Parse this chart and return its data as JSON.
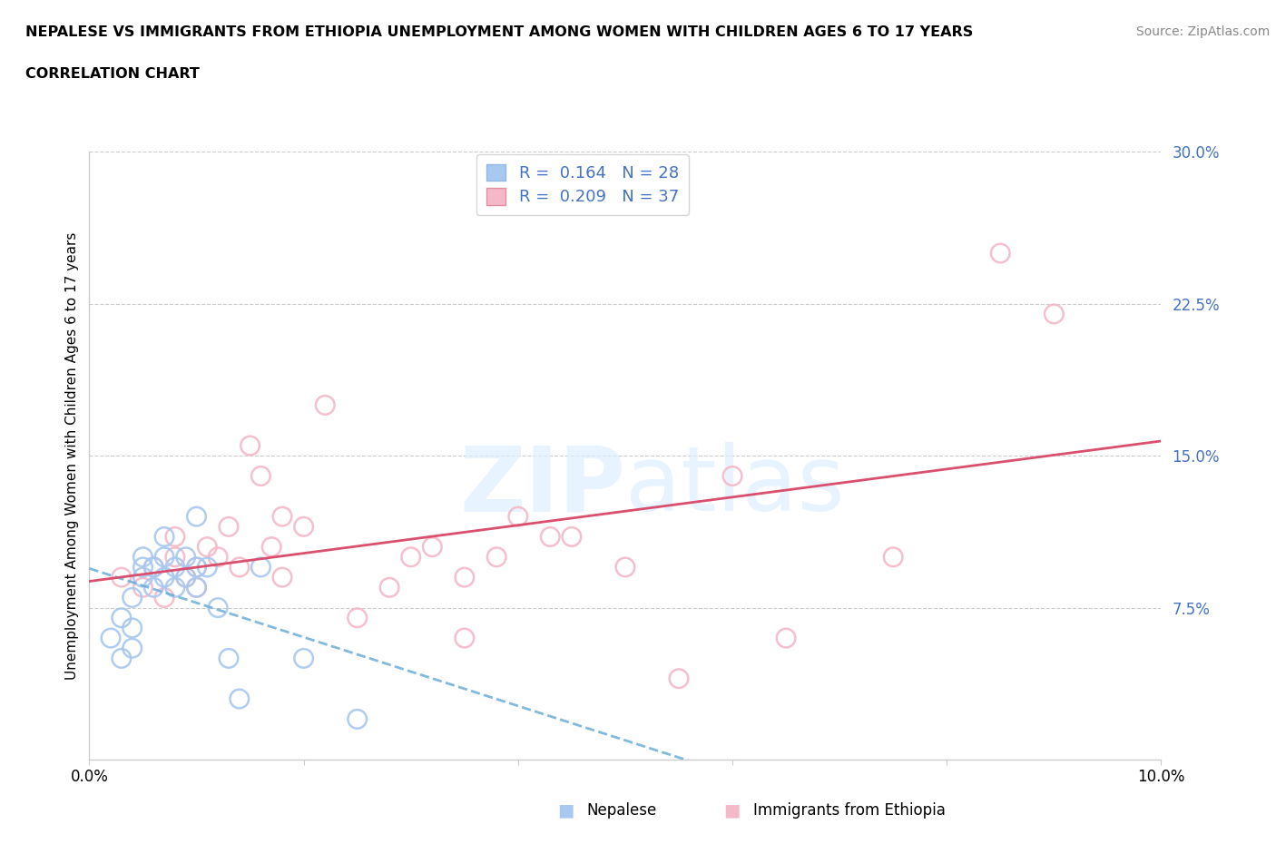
{
  "title_line1": "NEPALESE VS IMMIGRANTS FROM ETHIOPIA UNEMPLOYMENT AMONG WOMEN WITH CHILDREN AGES 6 TO 17 YEARS",
  "title_line2": "CORRELATION CHART",
  "source": "Source: ZipAtlas.com",
  "ylabel": "Unemployment Among Women with Children Ages 6 to 17 years",
  "xmin": 0.0,
  "xmax": 0.1,
  "ymin": 0.0,
  "ymax": 0.3,
  "yticks_right": [
    0.0,
    0.075,
    0.15,
    0.225,
    0.3
  ],
  "yticklabels_right": [
    "",
    "7.5%",
    "15.0%",
    "22.5%",
    "30.0%"
  ],
  "legend_R1": "0.164",
  "legend_N1": "28",
  "legend_R2": "0.209",
  "legend_N2": "37",
  "blue_scatter_color": "#a8c8f0",
  "pink_scatter_color": "#f4b8c8",
  "blue_line_color": "#6baed6",
  "pink_line_color": "#d94f6e",
  "watermark_color": "#ddeeff",
  "nepalese_x": [
    0.002,
    0.003,
    0.003,
    0.004,
    0.004,
    0.004,
    0.005,
    0.005,
    0.005,
    0.006,
    0.006,
    0.007,
    0.007,
    0.007,
    0.008,
    0.008,
    0.009,
    0.009,
    0.01,
    0.01,
    0.01,
    0.011,
    0.012,
    0.013,
    0.014,
    0.016,
    0.02,
    0.025
  ],
  "nepalese_y": [
    0.06,
    0.05,
    0.07,
    0.055,
    0.065,
    0.08,
    0.09,
    0.095,
    0.1,
    0.085,
    0.095,
    0.09,
    0.1,
    0.11,
    0.085,
    0.095,
    0.09,
    0.1,
    0.085,
    0.095,
    0.12,
    0.095,
    0.075,
    0.05,
    0.03,
    0.095,
    0.05,
    0.02
  ],
  "ethiopia_x": [
    0.003,
    0.005,
    0.006,
    0.007,
    0.008,
    0.008,
    0.009,
    0.01,
    0.01,
    0.011,
    0.012,
    0.013,
    0.014,
    0.015,
    0.016,
    0.017,
    0.018,
    0.018,
    0.02,
    0.022,
    0.025,
    0.028,
    0.03,
    0.032,
    0.035,
    0.035,
    0.038,
    0.04,
    0.043,
    0.045,
    0.05,
    0.055,
    0.06,
    0.065,
    0.075,
    0.085,
    0.09
  ],
  "ethiopia_y": [
    0.09,
    0.085,
    0.095,
    0.08,
    0.1,
    0.11,
    0.09,
    0.095,
    0.085,
    0.105,
    0.1,
    0.115,
    0.095,
    0.155,
    0.14,
    0.105,
    0.12,
    0.09,
    0.115,
    0.175,
    0.07,
    0.085,
    0.1,
    0.105,
    0.09,
    0.06,
    0.1,
    0.12,
    0.11,
    0.11,
    0.095,
    0.04,
    0.14,
    0.06,
    0.1,
    0.25,
    0.22
  ]
}
